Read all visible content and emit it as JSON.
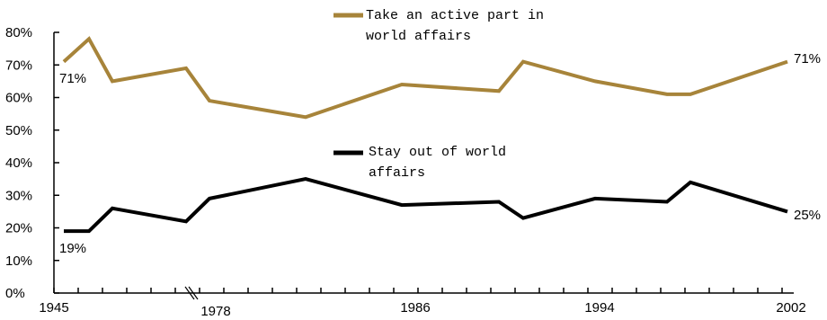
{
  "chart_data": {
    "type": "line",
    "xlabel": "",
    "ylabel": "",
    "ylim": [
      0,
      80
    ],
    "y_ticks": [
      0,
      10,
      20,
      30,
      40,
      50,
      60,
      70,
      80
    ],
    "y_tick_labels": [
      "0%",
      "10%",
      "20%",
      "30%",
      "40%",
      "50%",
      "60%",
      "70%",
      "80%"
    ],
    "x_tick_labels": [
      "1945",
      "1978",
      "1986",
      "1994",
      "2002"
    ],
    "axis_break": true,
    "series": [
      {
        "name": "Take an active part in world affairs",
        "name_lines": [
          "Take an active part in",
          "world affairs"
        ],
        "color": "#a7843a",
        "values": [
          71,
          78,
          65,
          69,
          59,
          54,
          64,
          62,
          71,
          65,
          61,
          61,
          71
        ],
        "start_label": "71%",
        "end_label": "71%"
      },
      {
        "name": "Stay out of world affairs",
        "name_lines": [
          "Stay out of world",
          "affairs"
        ],
        "color": "#000000",
        "values": [
          19,
          19,
          26,
          22,
          29,
          35,
          27,
          28,
          23,
          29,
          28,
          34,
          25
        ],
        "start_label": "19%",
        "end_label": "25%"
      }
    ]
  }
}
